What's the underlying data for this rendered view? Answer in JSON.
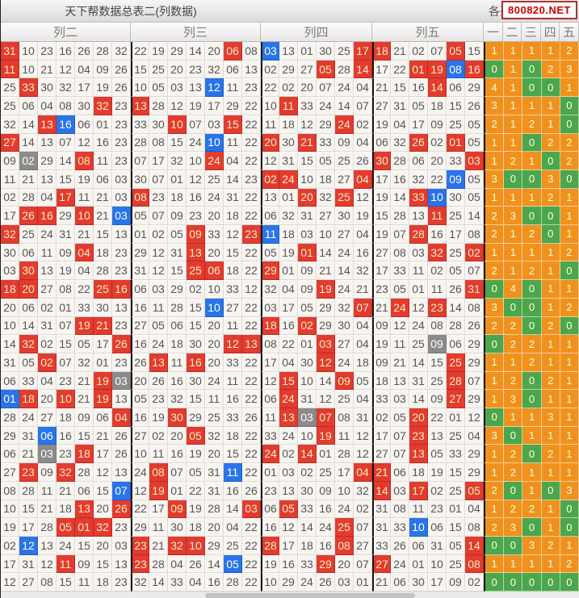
{
  "title": "天下帮数据总表二(列数据)",
  "right_header": "各列",
  "watermark": "800820.NET",
  "colors": {
    "highlight_red": "#e23b30",
    "highlight_blue": "#2874e8",
    "highlight_gray": "#8b8b8b",
    "summary_orange": "#f0911e",
    "summary_green": "#4ca64c",
    "watermark_text": "#cc0000"
  },
  "style_legend": {
    "r": "red",
    "b": "blue",
    "g": "gray",
    "o": "orange",
    "n": "green"
  },
  "groups": [
    {
      "label": "列二",
      "cells": [
        [
          "31r",
          "10",
          "23",
          "16",
          "26",
          "28",
          "32"
        ],
        [
          "11r",
          "10",
          "21",
          "12",
          "04",
          "09",
          "26"
        ],
        [
          "25",
          "33r",
          "30",
          "32",
          "17",
          "19",
          "26"
        ],
        [
          "25",
          "06",
          "04",
          "08",
          "30",
          "32r",
          "23"
        ],
        [
          "32",
          "14",
          "13r",
          "16b",
          "06",
          "01",
          "23"
        ],
        [
          "27r",
          "14",
          "13",
          "07",
          "12",
          "16",
          "23"
        ],
        [
          "09",
          "02g",
          "29",
          "14",
          "08r",
          "11",
          "23"
        ],
        [
          "11",
          "21",
          "13",
          "15",
          "19",
          "06",
          "03"
        ],
        [
          "02",
          "28",
          "04",
          "17r",
          "11",
          "21",
          "03"
        ],
        [
          "17",
          "26r",
          "16r",
          "29",
          "10r",
          "21",
          "03b"
        ],
        [
          "32r",
          "25",
          "24",
          "31",
          "21",
          "15",
          "13"
        ],
        [
          "30",
          "06",
          "11",
          "09",
          "04r",
          "18",
          "23"
        ],
        [
          "03",
          "30r",
          "13",
          "19",
          "04",
          "28",
          "23"
        ],
        [
          "18r",
          "20r",
          "27",
          "08",
          "22",
          "25r",
          "16r"
        ],
        [
          "20",
          "06",
          "02",
          "01",
          "33",
          "30",
          "13"
        ],
        [
          "10",
          "14",
          "31",
          "07",
          "19r",
          "21r",
          "23"
        ],
        [
          "14",
          "32r",
          "02",
          "15",
          "05",
          "17",
          "26r"
        ],
        [
          "31",
          "05",
          "02r",
          "07",
          "32",
          "01",
          "23"
        ],
        [
          "06",
          "33",
          "04",
          "23",
          "21",
          "19r",
          "03g"
        ],
        [
          "01b",
          "18r",
          "20",
          "10r",
          "21",
          "19r",
          "13"
        ],
        [
          "28",
          "24",
          "27",
          "18",
          "09",
          "06",
          "04r"
        ],
        [
          "29",
          "31",
          "06b",
          "16",
          "15",
          "21",
          "26"
        ],
        [
          "06",
          "21",
          "03g",
          "23",
          "18r",
          "17",
          "26"
        ],
        [
          "27",
          "23r",
          "09",
          "32r",
          "28",
          "12",
          "13"
        ],
        [
          "08",
          "28",
          "11",
          "21",
          "06",
          "15",
          "07b"
        ],
        [
          "10",
          "15",
          "21",
          "18",
          "13r",
          "20",
          "26r"
        ],
        [
          "19",
          "17",
          "28",
          "05r",
          "01r",
          "32r",
          "23"
        ],
        [
          "02",
          "12b",
          "13",
          "24",
          "15",
          "20",
          "03"
        ],
        [
          "17",
          "31",
          "12",
          "11r",
          "09",
          "15",
          "13"
        ],
        [
          "12",
          "27",
          "08",
          "15",
          "11",
          "18",
          "23"
        ]
      ]
    },
    {
      "label": "列三",
      "cells": [
        [
          "22",
          "19",
          "29",
          "14",
          "20",
          "06r",
          "08"
        ],
        [
          "15",
          "25",
          "20",
          "23",
          "32",
          "06",
          "13"
        ],
        [
          "10",
          "05",
          "03",
          "13",
          "12b",
          "11",
          "23"
        ],
        [
          "13r",
          "28",
          "12",
          "19",
          "17",
          "29",
          "22"
        ],
        [
          "33",
          "30",
          "10r",
          "07",
          "03",
          "15r",
          "22"
        ],
        [
          "28",
          "08",
          "15",
          "24",
          "10b",
          "11",
          "22"
        ],
        [
          "07",
          "17",
          "32",
          "10",
          "24r",
          "04",
          "22"
        ],
        [
          "30",
          "07",
          "01",
          "12",
          "25",
          "14",
          "23"
        ],
        [
          "08r",
          "23",
          "18",
          "16",
          "24",
          "31",
          "22"
        ],
        [
          "05",
          "07",
          "09",
          "23",
          "20",
          "18",
          "22"
        ],
        [
          "01",
          "02",
          "05",
          "09r",
          "33",
          "12",
          "23r"
        ],
        [
          "29",
          "12",
          "31",
          "13r",
          "20",
          "15",
          "22"
        ],
        [
          "31",
          "12",
          "15",
          "25r",
          "06r",
          "18",
          "22"
        ],
        [
          "06",
          "03",
          "29",
          "02",
          "10",
          "33",
          "12"
        ],
        [
          "16",
          "11",
          "28",
          "15",
          "10b",
          "27",
          "22"
        ],
        [
          "27",
          "05",
          "06",
          "15",
          "20",
          "11",
          "22"
        ],
        [
          "16",
          "24",
          "18",
          "30",
          "20",
          "12r",
          "13r"
        ],
        [
          "26",
          "13r",
          "11",
          "16r",
          "20",
          "33",
          "22"
        ],
        [
          "20",
          "26",
          "16",
          "30",
          "24",
          "11",
          "22"
        ],
        [
          "05",
          "23",
          "32",
          "15",
          "11",
          "16",
          "22"
        ],
        [
          "16",
          "19",
          "30r",
          "29",
          "25",
          "33",
          "26"
        ],
        [
          "27",
          "02",
          "20",
          "05r",
          "32",
          "18",
          "22"
        ],
        [
          "10",
          "11",
          "16",
          "19",
          "20",
          "15",
          "22"
        ],
        [
          "24",
          "08r",
          "07",
          "05",
          "31",
          "11b",
          "22"
        ],
        [
          "12",
          "19r",
          "01",
          "22",
          "31",
          "16",
          "26"
        ],
        [
          "22",
          "17",
          "09r",
          "19",
          "28",
          "14",
          "03r"
        ],
        [
          "29",
          "11",
          "30",
          "18",
          "20",
          "04",
          "22"
        ],
        [
          "23r",
          "21",
          "32r",
          "10r",
          "29",
          "25",
          "22"
        ],
        [
          "23r",
          "28",
          "04",
          "26",
          "14",
          "05b",
          "22"
        ],
        [
          "32",
          "14",
          "33",
          "04",
          "16",
          "28",
          "22"
        ]
      ]
    },
    {
      "label": "列四",
      "cells": [
        [
          "03b",
          "13",
          "01",
          "30",
          "25",
          "17r"
        ],
        [
          "02",
          "29",
          "27",
          "05r",
          "28",
          "14r"
        ],
        [
          "22",
          "02",
          "20",
          "07",
          "24",
          "04"
        ],
        [
          "10",
          "11r",
          "33",
          "24",
          "14",
          "07"
        ],
        [
          "11",
          "18",
          "12",
          "29",
          "24r",
          "02"
        ],
        [
          "20r",
          "30",
          "21r",
          "33",
          "09",
          "04"
        ],
        [
          "12",
          "31",
          "15",
          "05",
          "25",
          "26"
        ],
        [
          "02r",
          "24r",
          "10",
          "18",
          "27",
          "04r"
        ],
        [
          "13",
          "01",
          "20r",
          "32",
          "25r",
          "12"
        ],
        [
          "06",
          "32",
          "31",
          "27",
          "30",
          "19"
        ],
        [
          "11b",
          "18",
          "03",
          "10",
          "27",
          "04"
        ],
        [
          "05",
          "19",
          "01r",
          "14",
          "24",
          "16"
        ],
        [
          "29r",
          "01",
          "09",
          "21",
          "14",
          "32"
        ],
        [
          "32",
          "04",
          "09",
          "19r",
          "24",
          "21"
        ],
        [
          "03",
          "17",
          "05",
          "29",
          "32",
          "07r"
        ],
        [
          "18r",
          "16",
          "02r",
          "29",
          "30",
          "04"
        ],
        [
          "08",
          "22",
          "01",
          "03r",
          "27",
          "04"
        ],
        [
          "17",
          "04",
          "30",
          "12r",
          "24",
          "18"
        ],
        [
          "12",
          "15r",
          "10",
          "14",
          "09r",
          "05"
        ],
        [
          "06",
          "24r",
          "31",
          "12",
          "25",
          "04"
        ],
        [
          "11",
          "13r",
          "03g",
          "07r",
          "08",
          "31"
        ],
        [
          "33",
          "24",
          "10",
          "19r",
          "11",
          "12"
        ],
        [
          "24r",
          "02",
          "14r",
          "01",
          "28",
          "12"
        ],
        [
          "01",
          "03",
          "02",
          "25",
          "17",
          "04r"
        ],
        [
          "23",
          "13",
          "30",
          "09",
          "10",
          "32"
        ],
        [
          "06",
          "05r",
          "33",
          "16",
          "24",
          "02"
        ],
        [
          "16",
          "12",
          "14",
          "24",
          "25r",
          "07"
        ],
        [
          "28r",
          "17",
          "18",
          "16",
          "08r",
          "27"
        ],
        [
          "19",
          "16",
          "33",
          "29r",
          "20",
          "07"
        ],
        [
          "10",
          "29",
          "24",
          "26",
          "03",
          "01"
        ]
      ]
    },
    {
      "label": "列五",
      "cells": [
        [
          "18r",
          "21",
          "02",
          "07",
          "05r",
          "15"
        ],
        [
          "17",
          "22",
          "01r",
          "19r",
          "08b",
          "16r"
        ],
        [
          "21",
          "15",
          "16",
          "14r",
          "06",
          "29"
        ],
        [
          "27",
          "31",
          "05",
          "18",
          "15",
          "26"
        ],
        [
          "19",
          "04",
          "17",
          "09",
          "25",
          "05"
        ],
        [
          "06",
          "32",
          "26r",
          "02",
          "01r",
          "05"
        ],
        [
          "30r",
          "28",
          "06",
          "20",
          "33",
          "03r"
        ],
        [
          "17",
          "16",
          "32",
          "22",
          "09b",
          "05"
        ],
        [
          "19",
          "14",
          "33r",
          "10b",
          "30",
          "05"
        ],
        [
          "15",
          "28",
          "13",
          "11r",
          "25",
          "14"
        ],
        [
          "19",
          "07",
          "28r",
          "16",
          "17",
          "08"
        ],
        [
          "27",
          "08",
          "03",
          "32r",
          "25",
          "02r"
        ],
        [
          "17",
          "33",
          "11",
          "02",
          "05",
          "07"
        ],
        [
          "23",
          "05",
          "01",
          "11",
          "26",
          "31r"
        ],
        [
          "21",
          "24r",
          "12",
          "23r",
          "14",
          "08"
        ],
        [
          "09",
          "12",
          "24",
          "08",
          "28",
          "26"
        ],
        [
          "19",
          "11",
          "25",
          "09g",
          "06",
          "29"
        ],
        [
          "09",
          "21",
          "14",
          "15",
          "25r",
          "29"
        ],
        [
          "18",
          "13",
          "31",
          "25",
          "28r",
          "07"
        ],
        [
          "33",
          "03",
          "14",
          "09",
          "27r",
          "29"
        ],
        [
          "02",
          "05",
          "20r",
          "22",
          "01",
          "12"
        ],
        [
          "17",
          "07",
          "23r",
          "13",
          "25",
          "04"
        ],
        [
          "27",
          "07",
          "13r",
          "05",
          "33",
          "29"
        ],
        [
          "21r",
          "06",
          "18",
          "19",
          "15",
          "29"
        ],
        [
          "14r",
          "03",
          "17r",
          "02",
          "25",
          "05r"
        ],
        [
          "31",
          "08",
          "11",
          "23",
          "01",
          "04"
        ],
        [
          "31",
          "33",
          "10b",
          "06",
          "15",
          "08"
        ],
        [
          "33",
          "26",
          "06",
          "31",
          "05",
          "14r"
        ],
        [
          "27r",
          "24",
          "01",
          "10",
          "25",
          "08r"
        ],
        [
          "21",
          "06",
          "30",
          "17",
          "09",
          "02"
        ]
      ]
    }
  ],
  "summary": {
    "headers": [
      "一",
      "二",
      "三",
      "四",
      "五"
    ],
    "rows": [
      [
        "1o",
        "1o",
        "1o",
        "1o",
        "2o"
      ],
      [
        "0n",
        "1o",
        "0n",
        "2o",
        "3o"
      ],
      [
        "4o",
        "1o",
        "0n",
        "0n",
        "1o"
      ],
      [
        "3o",
        "1o",
        "1o",
        "1o",
        "0n"
      ],
      [
        "2o",
        "1o",
        "2o",
        "1o",
        "0n"
      ],
      [
        "1o",
        "1o",
        "0n",
        "2o",
        "2o"
      ],
      [
        "1o",
        "2o",
        "1o",
        "0n",
        "2o"
      ],
      [
        "3o",
        "0n",
        "0n",
        "3o",
        "0n"
      ],
      [
        "1o",
        "1o",
        "1o",
        "2o",
        "1o"
      ],
      [
        "2o",
        "3o",
        "0n",
        "0n",
        "1o"
      ],
      [
        "2o",
        "1o",
        "2o",
        "0n",
        "1o"
      ],
      [
        "1o",
        "1o",
        "1o",
        "1o",
        "2o"
      ],
      [
        "2o",
        "1o",
        "2o",
        "1o",
        "0n"
      ],
      [
        "0n",
        "4o",
        "0n",
        "1o",
        "1o"
      ],
      [
        "3o",
        "0n",
        "0n",
        "1o",
        "2o"
      ],
      [
        "2o",
        "2o",
        "0n",
        "2o",
        "0n"
      ],
      [
        "0n",
        "2o",
        "2o",
        "1o",
        "1o"
      ],
      [
        "1o",
        "1o",
        "2o",
        "1o",
        "1o"
      ],
      [
        "1o",
        "2o",
        "0n",
        "2o",
        "1o"
      ],
      [
        "1o",
        "3o",
        "0n",
        "1o",
        "1o"
      ],
      [
        "0n",
        "1o",
        "1o",
        "3o",
        "1o"
      ],
      [
        "3o",
        "0n",
        "1o",
        "1o",
        "1o"
      ],
      [
        "1o",
        "2o",
        "0n",
        "2o",
        "1o"
      ],
      [
        "1o",
        "2o",
        "1o",
        "1o",
        "1o"
      ],
      [
        "2o",
        "0n",
        "1o",
        "0n",
        "3o"
      ],
      [
        "1o",
        "2o",
        "2o",
        "1o",
        "0n"
      ],
      [
        "2o",
        "3o",
        "0n",
        "1o",
        "0n"
      ],
      [
        "0n",
        "0n",
        "3o",
        "2o",
        "1o"
      ],
      [
        "1o",
        "1o",
        "1o",
        "1o",
        "2o"
      ],
      [
        "0n",
        "0n",
        "0n",
        "0n",
        "0n"
      ]
    ]
  }
}
